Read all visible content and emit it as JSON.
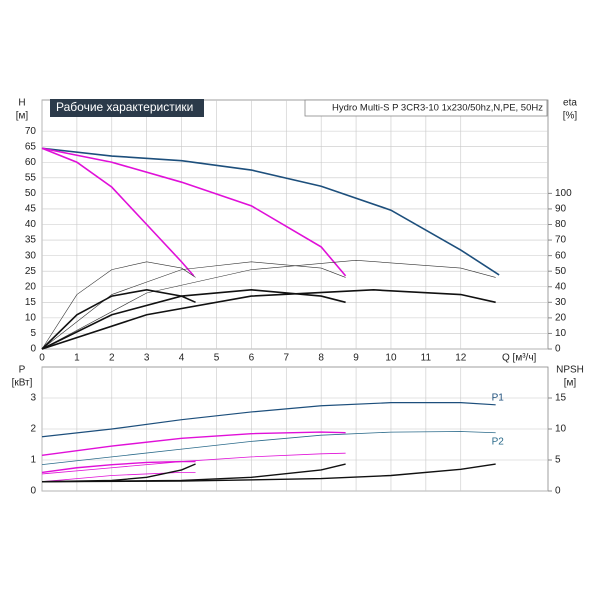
{
  "chart_data": [
    {
      "type": "line",
      "title": "Рабочие характеристики",
      "subtitle": "Hydro Multi-S P 3CR3-10 1x230/50hz,N,PE, 50Hz",
      "y_label": "H",
      "y_unit": "[м]",
      "y2_label": "eta",
      "y2_unit": "[%]",
      "x_label": "Q [м³/ч]",
      "xlim": [
        0,
        14.5
      ],
      "xticks": [
        0,
        1,
        2,
        3,
        4,
        5,
        6,
        7,
        8,
        9,
        10,
        11,
        12
      ],
      "ylim": [
        0,
        80
      ],
      "yticks": [
        0,
        5,
        10,
        15,
        20,
        25,
        30,
        35,
        40,
        45,
        50,
        55,
        60,
        65,
        70
      ],
      "y2lim": [
        0,
        160
      ],
      "y2ticks": [
        0,
        10,
        20,
        30,
        40,
        50,
        60,
        70,
        80,
        90,
        100
      ],
      "grid": true,
      "series": [
        {
          "color": "#1d4f7c",
          "linewidth": 1.6,
          "x": [
            0,
            2,
            4,
            6,
            8,
            10,
            12,
            13.1
          ],
          "values": [
            64.5,
            62,
            60.5,
            57.5,
            52.3,
            44.6,
            31.8,
            23.8
          ]
        },
        {
          "color": "#e010d8",
          "linewidth": 1.6,
          "x": [
            0,
            2,
            4,
            6,
            8,
            8.7
          ],
          "values": [
            64.5,
            60,
            53.6,
            46,
            32.8,
            23.5
          ]
        },
        {
          "color": "#e010d8",
          "linewidth": 1.6,
          "x": [
            0,
            1,
            2,
            3,
            4,
            4.35
          ],
          "values": [
            64.5,
            60,
            52,
            40,
            28,
            23.5
          ]
        },
        {
          "color": "#333333",
          "linewidth": 0.6,
          "axis": "y2",
          "x": [
            0,
            1,
            2,
            3,
            4,
            4.4
          ],
          "values": [
            0,
            35,
            51,
            56,
            52,
            46
          ]
        },
        {
          "color": "#333333",
          "linewidth": 0.6,
          "axis": "y2",
          "x": [
            0,
            2,
            4,
            6,
            8,
            8.7
          ],
          "values": [
            0,
            35,
            51,
            56,
            52,
            46
          ]
        },
        {
          "color": "#333333",
          "linewidth": 0.6,
          "axis": "y2",
          "x": [
            0,
            3,
            6,
            9,
            12,
            13
          ],
          "values": [
            0,
            36,
            51,
            57,
            52,
            46
          ]
        },
        {
          "color": "#111111",
          "linewidth": 1.6,
          "axis": "y2",
          "x": [
            0,
            1,
            2,
            3,
            4,
            4.4
          ],
          "values": [
            0,
            22,
            34,
            38,
            34,
            30
          ]
        },
        {
          "color": "#111111",
          "linewidth": 1.6,
          "axis": "y2",
          "x": [
            0,
            2,
            4,
            6,
            8,
            8.7
          ],
          "values": [
            0,
            22,
            34,
            38,
            34,
            30
          ]
        },
        {
          "color": "#111111",
          "linewidth": 1.6,
          "axis": "y2",
          "x": [
            0,
            3,
            6,
            9.5,
            12,
            13
          ],
          "values": [
            0,
            22,
            34,
            38,
            35,
            30
          ]
        }
      ]
    },
    {
      "type": "line",
      "y_label": "P",
      "y_unit": "[кВт]",
      "y2_label": "NPSH",
      "y2_unit": "[м]",
      "xlim": [
        0,
        14.5
      ],
      "xticks": [
        0,
        1,
        2,
        3,
        4,
        5,
        6,
        7,
        8,
        9,
        10,
        11,
        12
      ],
      "ylim": [
        0,
        4
      ],
      "yticks": [
        0,
        1,
        2,
        3
      ],
      "y2lim": [
        0,
        20
      ],
      "y2ticks": [
        0,
        5,
        10,
        15
      ],
      "grid": true,
      "series": [
        {
          "name": "P1",
          "color": "#1d4f7c",
          "linewidth": 1.2,
          "x": [
            0,
            2,
            4,
            6,
            8,
            10,
            12,
            13
          ],
          "values": [
            1.75,
            2.0,
            2.3,
            2.55,
            2.75,
            2.85,
            2.85,
            2.78
          ]
        },
        {
          "name": "P2",
          "color": "#2a6a8a",
          "linewidth": 0.8,
          "x": [
            0,
            2,
            4,
            6,
            8,
            10,
            12,
            13
          ],
          "values": [
            0.85,
            1.1,
            1.35,
            1.6,
            1.8,
            1.9,
            1.92,
            1.88
          ]
        },
        {
          "color": "#e010d8",
          "linewidth": 1.4,
          "x": [
            0,
            2,
            4,
            6,
            8,
            8.7
          ],
          "values": [
            1.15,
            1.45,
            1.7,
            1.85,
            1.9,
            1.88
          ]
        },
        {
          "color": "#e010d8",
          "linewidth": 0.8,
          "x": [
            0,
            2,
            4,
            6,
            8,
            8.7
          ],
          "values": [
            0.55,
            0.75,
            0.95,
            1.1,
            1.2,
            1.22
          ]
        },
        {
          "color": "#e010d8",
          "linewidth": 1.4,
          "x": [
            0,
            1,
            2,
            3,
            4,
            4.4
          ],
          "values": [
            0.6,
            0.75,
            0.85,
            0.92,
            0.95,
            0.95
          ]
        },
        {
          "color": "#e010d8",
          "linewidth": 0.8,
          "x": [
            0,
            1,
            2,
            3,
            4,
            4.4
          ],
          "values": [
            0.3,
            0.4,
            0.5,
            0.55,
            0.6,
            0.6
          ]
        },
        {
          "color": "#111111",
          "linewidth": 1.4,
          "axis": "y2",
          "x": [
            0,
            4,
            8,
            10,
            12,
            13
          ],
          "values": [
            1.5,
            1.6,
            2,
            2.5,
            3.5,
            4.35
          ]
        },
        {
          "color": "#111111",
          "linewidth": 1.4,
          "axis": "y2",
          "x": [
            0,
            4,
            6,
            8,
            8.7
          ],
          "values": [
            1.5,
            1.7,
            2.2,
            3.4,
            4.35
          ]
        },
        {
          "color": "#111111",
          "linewidth": 1.4,
          "axis": "y2",
          "x": [
            0,
            2,
            3,
            4,
            4.4
          ],
          "values": [
            1.5,
            1.7,
            2.2,
            3.4,
            4.35
          ]
        }
      ]
    }
  ]
}
